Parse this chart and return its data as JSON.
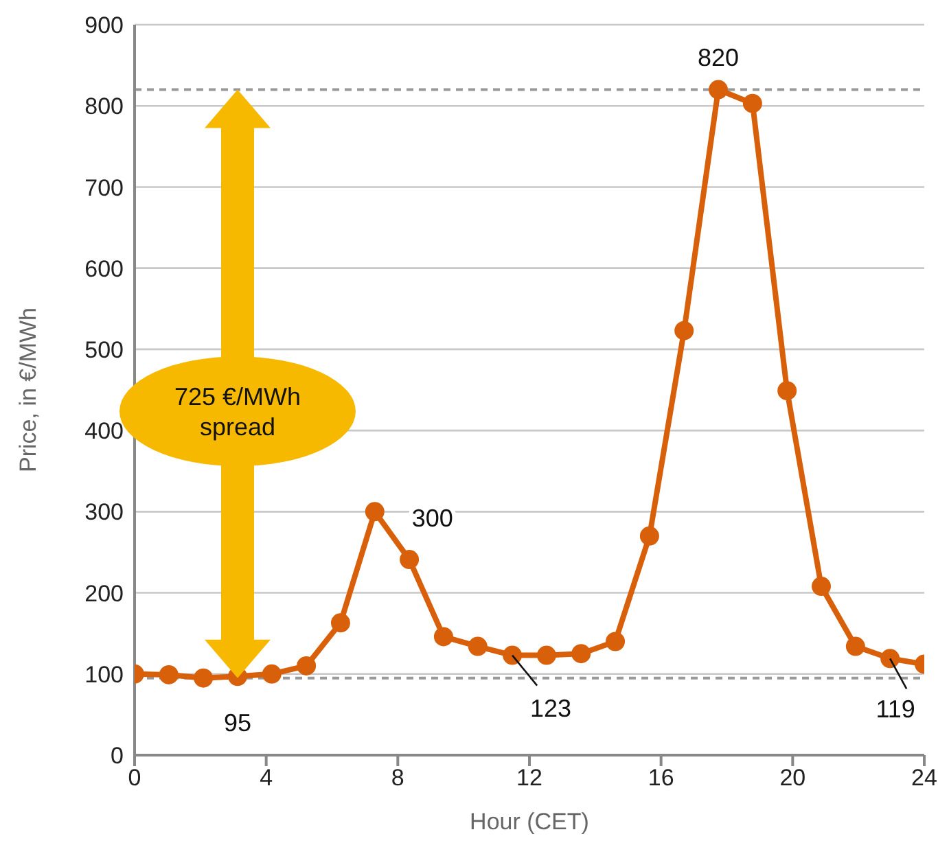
{
  "chart_data": {
    "type": "line",
    "xlabel": "Hour (CET)",
    "ylabel": "Price, in €/MWh",
    "x": [
      0,
      1.04,
      2.09,
      3.13,
      4.17,
      5.22,
      6.26,
      7.3,
      8.35,
      9.39,
      10.43,
      11.48,
      12.52,
      13.57,
      14.61,
      15.65,
      16.7,
      17.74,
      18.78,
      19.83,
      20.87,
      21.91,
      22.96,
      24
    ],
    "series": [
      {
        "color": "#d9600a",
        "values": [
          100,
          99,
          95,
          97,
          100,
          110,
          163,
          300,
          241,
          146,
          134,
          123,
          123,
          125,
          140,
          270,
          523,
          820,
          803,
          449,
          208,
          134,
          119,
          112
        ]
      }
    ],
    "xlim": [
      0,
      24
    ],
    "xticks": [
      0,
      4,
      8,
      12,
      16,
      20,
      24
    ],
    "ylim": [
      0,
      900
    ],
    "yticks": [
      0,
      100,
      200,
      300,
      400,
      500,
      600,
      700,
      800,
      900
    ],
    "grid": "y",
    "marker": "circle",
    "line_style": "solid",
    "ref_lines": [
      {
        "axis": "y",
        "value": 820,
        "color": "#999999",
        "line_style": "dashed"
      },
      {
        "axis": "y",
        "value": 95,
        "color": "#999999",
        "line_style": "dashed"
      }
    ],
    "annotations": [
      {
        "text": "820",
        "x": 17.74,
        "y": 820
      },
      {
        "text": "300",
        "x": 7.3,
        "y": 300
      },
      {
        "text": "95",
        "x": 3.13,
        "y": 95
      },
      {
        "text": "123",
        "x": 11.48,
        "y": 123
      },
      {
        "text": "119",
        "x": 22.96,
        "y": 119
      },
      "725 €/MWh spread"
    ]
  }
}
